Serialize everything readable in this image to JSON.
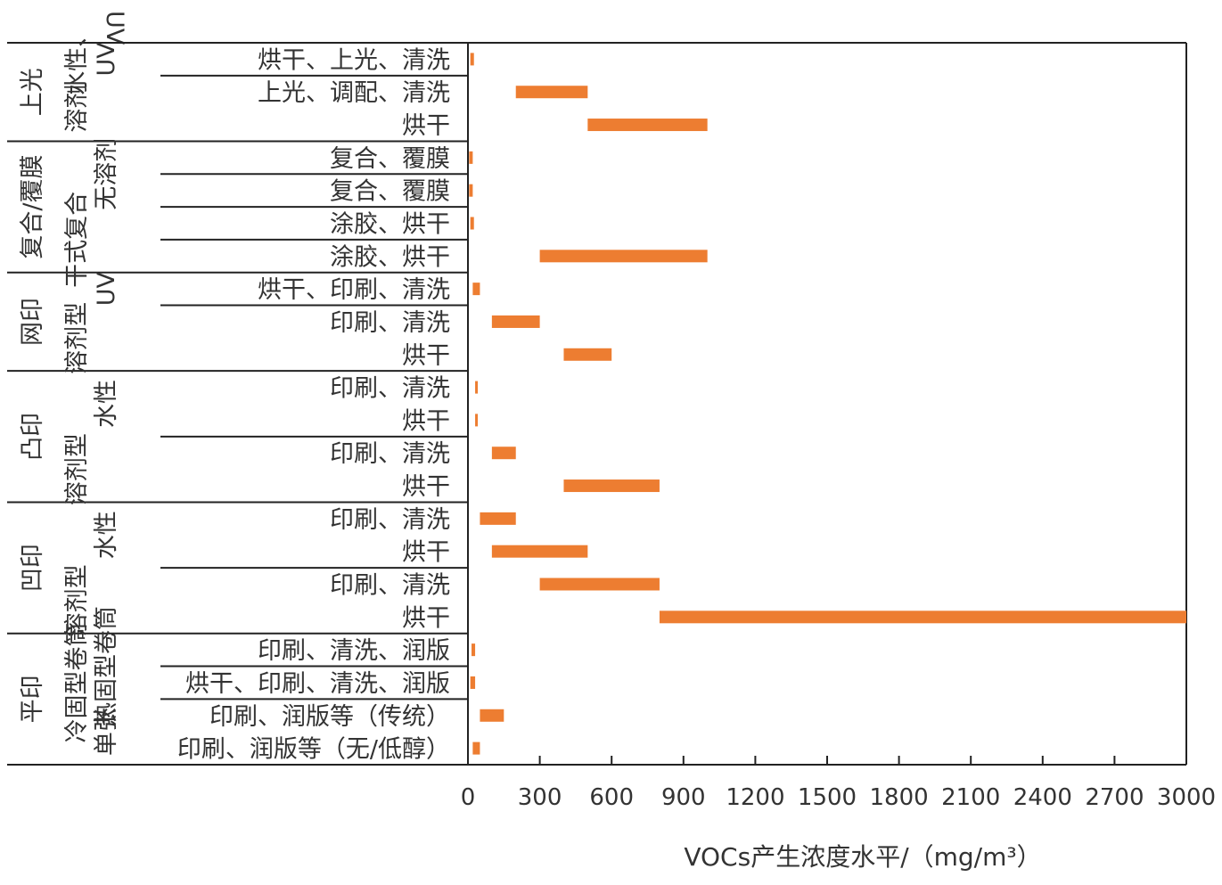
{
  "chart_data": {
    "type": "bar",
    "orientation": "horizontal-range",
    "title": "",
    "xlabel": "VOCs产生浓度水平/（mg/m³）",
    "ylabel": "",
    "xlim": [
      0,
      3000
    ],
    "xticks": [
      "0",
      "300",
      "600",
      "900",
      "1200",
      "1500",
      "1800",
      "2100",
      "2400",
      "2700",
      "3000"
    ],
    "grid": false,
    "legend": "none",
    "bar_color": "#ED7D31",
    "top_overflow_label": "UV",
    "rows": [
      {
        "label": "烘干、上光、清洗",
        "min": 10,
        "max": 25
      },
      {
        "label": "上光、调配、清洗",
        "min": 200,
        "max": 500
      },
      {
        "label": "烘干",
        "min": 500,
        "max": 1000
      },
      {
        "label": "复合、覆膜",
        "min": 5,
        "max": 20
      },
      {
        "label": "复合、覆膜",
        "min": 5,
        "max": 20
      },
      {
        "label": "涂胶、烘干",
        "min": 10,
        "max": 25
      },
      {
        "label": "涂胶、烘干",
        "min": 300,
        "max": 1000
      },
      {
        "label": "烘干、印刷、清洗",
        "min": 20,
        "max": 50
      },
      {
        "label": "印刷、清洗",
        "min": 100,
        "max": 300
      },
      {
        "label": "烘干",
        "min": 400,
        "max": 600
      },
      {
        "label": "印刷、清洗",
        "min": 30,
        "max": 40
      },
      {
        "label": "烘干",
        "min": 30,
        "max": 40
      },
      {
        "label": "印刷、清洗",
        "min": 100,
        "max": 200
      },
      {
        "label": "烘干",
        "min": 400,
        "max": 800
      },
      {
        "label": "印刷、清洗",
        "min": 50,
        "max": 200
      },
      {
        "label": "烘干",
        "min": 100,
        "max": 500
      },
      {
        "label": "印刷、清洗",
        "min": 300,
        "max": 800
      },
      {
        "label": "烘干",
        "min": 800,
        "max": 3000
      },
      {
        "label": "印刷、清洗、润版",
        "min": 15,
        "max": 30
      },
      {
        "label": "烘干、印刷、清洗、润版",
        "min": 10,
        "max": 30
      },
      {
        "label": "印刷、润版等（传统）",
        "min": 50,
        "max": 150
      },
      {
        "label": "印刷、润版等（无/低醇）",
        "min": 20,
        "max": 50
      }
    ],
    "groups": [
      {
        "label": "上光",
        "row_start": 0,
        "row_end": 3
      },
      {
        "label": "复合/覆膜",
        "row_start": 3,
        "row_end": 7
      },
      {
        "label": "网印",
        "row_start": 7,
        "row_end": 10
      },
      {
        "label": "凸印",
        "row_start": 10,
        "row_end": 14
      },
      {
        "label": "凹印",
        "row_start": 14,
        "row_end": 18
      },
      {
        "label": "平印",
        "row_start": 18,
        "row_end": 22
      }
    ],
    "subgroups": [
      {
        "label": "溶剂",
        "row_start": 1,
        "row_end": 3
      },
      {
        "label": "UV",
        "row_start": 0,
        "row_end": 1
      },
      {
        "label": "水性、",
        "row_start": 0,
        "row_end": 1
      },
      {
        "label": "无溶剂",
        "row_start": 3,
        "row_end": 5
      },
      {
        "label": "干式复合",
        "row_start": 5,
        "row_end": 7
      },
      {
        "label": "UV",
        "row_start": 7,
        "row_end": 8
      },
      {
        "label": "溶剂型",
        "row_start": 8,
        "row_end": 10
      },
      {
        "label": "水性",
        "row_start": 10,
        "row_end": 12
      },
      {
        "label": "溶剂型",
        "row_start": 12,
        "row_end": 14
      },
      {
        "label": "水性",
        "row_start": 14,
        "row_end": 16
      },
      {
        "label": "溶剂型",
        "row_start": 16,
        "row_end": 18
      },
      {
        "label": "热固型卷筒",
        "row_start": 18,
        "row_end": 20
      },
      {
        "label": "冷固型卷筒",
        "row_start": 19,
        "row_end": 20
      },
      {
        "label": "单张",
        "row_start": 20,
        "row_end": 22
      }
    ]
  }
}
